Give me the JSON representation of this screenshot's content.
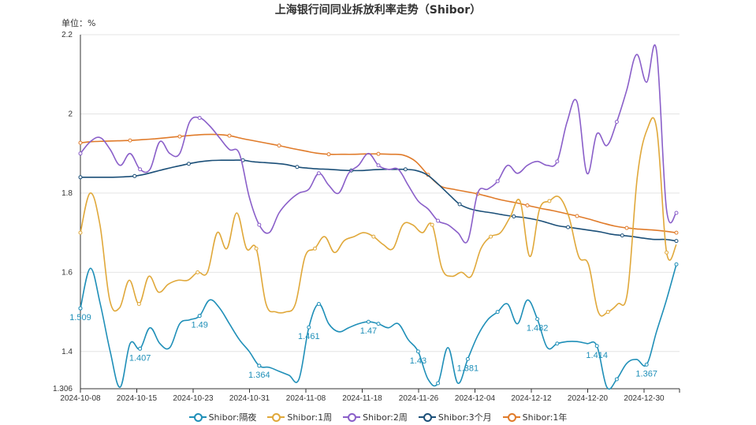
{
  "chart_data": {
    "type": "line",
    "title": "上海银行间同业拆放利率走势（Shibor）",
    "unit_label": "单位：%",
    "x_labels": [
      "2024-10-08",
      "2024-10-15",
      "2024-10-23",
      "2024-10-31",
      "2024-11-08",
      "2024-11-18",
      "2024-11-26",
      "2024-12-04",
      "2024-12-12",
      "2024-12-20",
      "2024-12-30"
    ],
    "y_ticks": [
      "1.306",
      "1.4",
      "1.6",
      "1.8",
      "2",
      "2.2"
    ],
    "ylim": [
      1.306,
      2.2
    ],
    "grid": true,
    "legend_position": "bottom",
    "series": [
      {
        "name": "Shibor:隔夜",
        "color": "#1f8fb8",
        "values": [
          1.509,
          1.61,
          1.52,
          1.4,
          1.31,
          1.42,
          1.407,
          1.46,
          1.42,
          1.41,
          1.47,
          1.48,
          1.49,
          1.53,
          1.51,
          1.47,
          1.43,
          1.4,
          1.364,
          1.36,
          1.35,
          1.34,
          1.33,
          1.461,
          1.52,
          1.47,
          1.45,
          1.46,
          1.47,
          1.475,
          1.47,
          1.46,
          1.47,
          1.43,
          1.4,
          1.33,
          1.32,
          1.41,
          1.32,
          1.381,
          1.44,
          1.48,
          1.5,
          1.52,
          1.47,
          1.53,
          1.482,
          1.41,
          1.42,
          1.425,
          1.425,
          1.42,
          1.414,
          1.31,
          1.33,
          1.37,
          1.38,
          1.367,
          1.45,
          1.53,
          1.62
        ],
        "labels": [
          {
            "i": 0,
            "text": "1.509"
          },
          {
            "i": 6,
            "text": "1.407"
          },
          {
            "i": 12,
            "text": "1.49"
          },
          {
            "i": 18,
            "text": "1.364"
          },
          {
            "i": 23,
            "text": "1.461"
          },
          {
            "i": 29,
            "text": "1.47"
          },
          {
            "i": 34,
            "text": "1.43"
          },
          {
            "i": 39,
            "text": "1.381"
          },
          {
            "i": 46,
            "text": "1.482"
          },
          {
            "i": 52,
            "text": "1.414"
          },
          {
            "i": 57,
            "text": "1.367"
          }
        ]
      },
      {
        "name": "Shibor:1周",
        "color": "#e0a83a",
        "values": [
          1.7,
          1.8,
          1.72,
          1.53,
          1.51,
          1.58,
          1.52,
          1.59,
          1.55,
          1.57,
          1.58,
          1.58,
          1.6,
          1.6,
          1.7,
          1.66,
          1.75,
          1.66,
          1.66,
          1.52,
          1.5,
          1.5,
          1.52,
          1.64,
          1.66,
          1.69,
          1.65,
          1.68,
          1.69,
          1.7,
          1.69,
          1.67,
          1.66,
          1.72,
          1.72,
          1.7,
          1.72,
          1.61,
          1.59,
          1.6,
          1.59,
          1.66,
          1.69,
          1.7,
          1.74,
          1.78,
          1.64,
          1.76,
          1.78,
          1.79,
          1.74,
          1.64,
          1.62,
          1.5,
          1.5,
          1.52,
          1.55,
          1.84,
          1.96,
          1.96,
          1.65,
          1.67
        ],
        "labels": []
      },
      {
        "name": "Shibor:2周",
        "color": "#8a5fc9",
        "values": [
          1.9,
          1.93,
          1.94,
          1.91,
          1.87,
          1.9,
          1.86,
          1.86,
          1.93,
          1.9,
          1.9,
          1.98,
          1.99,
          1.97,
          1.94,
          1.91,
          1.9,
          1.79,
          1.72,
          1.7,
          1.75,
          1.78,
          1.8,
          1.81,
          1.85,
          1.82,
          1.8,
          1.85,
          1.87,
          1.9,
          1.87,
          1.86,
          1.86,
          1.82,
          1.78,
          1.76,
          1.73,
          1.72,
          1.7,
          1.68,
          1.8,
          1.81,
          1.83,
          1.87,
          1.85,
          1.87,
          1.88,
          1.87,
          1.88,
          1.98,
          2.03,
          1.85,
          1.95,
          1.92,
          1.98,
          2.06,
          2.15,
          2.08,
          2.16,
          1.76,
          1.75
        ],
        "labels": []
      },
      {
        "name": "Shibor:3个月",
        "color": "#1b4f78",
        "values": [
          1.84,
          1.84,
          1.84,
          1.84,
          1.841,
          1.843,
          1.848,
          1.855,
          1.862,
          1.868,
          1.874,
          1.879,
          1.882,
          1.883,
          1.883,
          1.883,
          1.879,
          1.877,
          1.875,
          1.872,
          1.866,
          1.863,
          1.861,
          1.86,
          1.858,
          1.857,
          1.857,
          1.859,
          1.86,
          1.86,
          1.86,
          1.857,
          1.846,
          1.823,
          1.797,
          1.772,
          1.76,
          1.754,
          1.75,
          1.745,
          1.741,
          1.738,
          1.733,
          1.726,
          1.718,
          1.714,
          1.71,
          1.706,
          1.702,
          1.696,
          1.693,
          1.69,
          1.686,
          1.683,
          1.683,
          1.679
        ],
        "labels": []
      },
      {
        "name": "Shibor:1年",
        "color": "#e07b2a",
        "values": [
          1.927,
          1.93,
          1.931,
          1.932,
          1.933,
          1.935,
          1.937,
          1.94,
          1.943,
          1.946,
          1.948,
          1.948,
          1.945,
          1.938,
          1.932,
          1.926,
          1.92,
          1.913,
          1.907,
          1.901,
          1.898,
          1.898,
          1.898,
          1.899,
          1.899,
          1.898,
          1.896,
          1.88,
          1.846,
          1.818,
          1.81,
          1.804,
          1.798,
          1.79,
          1.782,
          1.776,
          1.769,
          1.762,
          1.756,
          1.749,
          1.742,
          1.734,
          1.725,
          1.717,
          1.712,
          1.709,
          1.707,
          1.704,
          1.7
        ],
        "labels": []
      }
    ]
  }
}
